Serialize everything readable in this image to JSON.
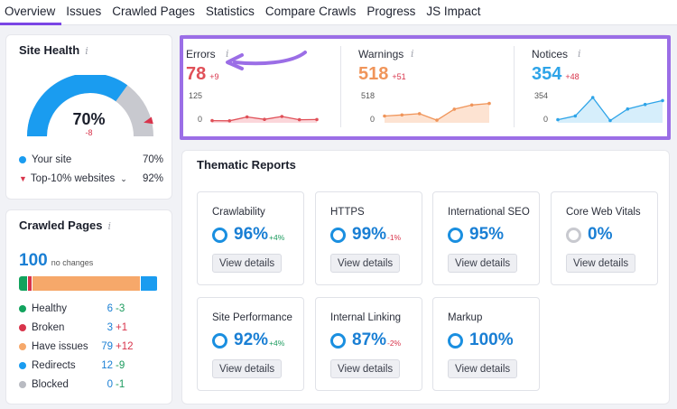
{
  "tabs": [
    "Overview",
    "Issues",
    "Crawled Pages",
    "Statistics",
    "Compare Crawls",
    "Progress",
    "JS Impact"
  ],
  "site_health": {
    "title": "Site Health",
    "value_label": "70%",
    "delta": "-8",
    "gauge_fraction": 0.7,
    "benchmark_fraction": 0.92,
    "legend": [
      {
        "label": "Your site",
        "value": "70%"
      },
      {
        "label": "Top-10% websites",
        "value": "92%"
      }
    ],
    "colors": {
      "your_site": "#1a9cf0",
      "top10": "#d8344b",
      "track": "#c8c9cf"
    }
  },
  "metrics": [
    {
      "label": "Errors",
      "value": "78",
      "delta": "+9",
      "axis_top": "125",
      "axis_bottom": "0",
      "color": "#e05058",
      "fill": "#fbd6da",
      "series": [
        10,
        9,
        27,
        16,
        29,
        14,
        15
      ]
    },
    {
      "label": "Warnings",
      "value": "518",
      "delta": "+51",
      "axis_top": "518",
      "axis_bottom": "0",
      "color": "#f0955a",
      "fill": "#fde3d2",
      "series": [
        130,
        150,
        175,
        50,
        260,
        340,
        370
      ]
    },
    {
      "label": "Notices",
      "value": "354",
      "delta": "+48",
      "axis_top": "354",
      "axis_bottom": "0",
      "color": "#2ea4e8",
      "fill": "#d6eefb",
      "series": [
        40,
        90,
        330,
        30,
        180,
        240,
        290
      ]
    }
  ],
  "crawled_pages": {
    "title": "Crawled Pages",
    "total": "100",
    "total_note": "no changes",
    "rows": [
      {
        "label": "Healthy",
        "value": "6",
        "delta": "-3",
        "color": "#12a35e",
        "fraction": 0.06
      },
      {
        "label": "Broken",
        "value": "3",
        "delta": "+1",
        "color": "#d8344b",
        "fraction": 0.03
      },
      {
        "label": "Have issues",
        "value": "79",
        "delta": "+12",
        "color": "#f6a86a",
        "fraction": 0.79
      },
      {
        "label": "Redirects",
        "value": "12",
        "delta": "-9",
        "color": "#1a9cf0",
        "fraction": 0.12
      },
      {
        "label": "Blocked",
        "value": "0",
        "delta": "-1",
        "color": "#b9bbc2",
        "fraction": 0.0
      }
    ]
  },
  "thematic": {
    "title": "Thematic Reports",
    "button_label": "View details",
    "reports": [
      {
        "name": "Crawlability",
        "value": "96%",
        "delta": "+4%"
      },
      {
        "name": "HTTPS",
        "value": "99%",
        "delta": "-1%"
      },
      {
        "name": "International SEO",
        "value": "95%",
        "delta": ""
      },
      {
        "name": "Core Web Vitals",
        "value": "0%",
        "delta": ""
      },
      {
        "name": "Site Performance",
        "value": "92%",
        "delta": "+4%"
      },
      {
        "name": "Internal Linking",
        "value": "87%",
        "delta": "-2%"
      },
      {
        "name": "Markup",
        "value": "100%",
        "delta": ""
      }
    ]
  },
  "annotation": {
    "highlight_color": "#9b6ee6"
  }
}
